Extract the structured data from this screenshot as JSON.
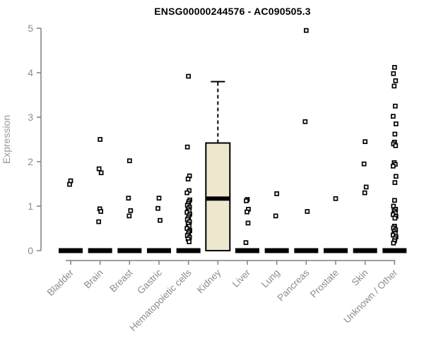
{
  "chart_data": {
    "type": "boxplot",
    "title": "ENSG00000244576 - AC090505.3",
    "ylabel": "Expression",
    "xlabel": "",
    "ylim": [
      0,
      5
    ],
    "yticks": [
      0,
      1,
      2,
      3,
      4,
      5
    ],
    "grid": false,
    "legend": "none",
    "categories": [
      "Bladder",
      "Brain",
      "Breast",
      "Gastric",
      "Hematopoietic cells",
      "Kidney",
      "Liver",
      "Lung",
      "Pancreas",
      "Prostate",
      "Skin",
      "Unknown / Other"
    ],
    "series": [
      {
        "category": "Bladder",
        "zero_bar": true,
        "points": [
          1.57,
          1.49
        ]
      },
      {
        "category": "Brain",
        "zero_bar": true,
        "points": [
          2.5,
          1.84,
          1.75,
          0.94,
          0.88,
          0.65
        ]
      },
      {
        "category": "Breast",
        "zero_bar": true,
        "points": [
          2.02,
          1.18,
          0.9,
          0.78
        ]
      },
      {
        "category": "Gastric",
        "zero_bar": true,
        "points": [
          1.18,
          0.95,
          0.68
        ]
      },
      {
        "category": "Hematopoietic cells",
        "zero_bar": true,
        "points": [
          3.92,
          2.33,
          1.68,
          1.61,
          1.35,
          1.3,
          1.14,
          1.1,
          1.06,
          1.02,
          0.98,
          0.94,
          0.9,
          0.86,
          0.82,
          0.78,
          0.74,
          0.7,
          0.65,
          0.6,
          0.55,
          0.5,
          0.45,
          0.42,
          0.38,
          0.34,
          0.3,
          0.26,
          0.2
        ]
      },
      {
        "category": "Kidney",
        "zero_bar": false,
        "points": [],
        "box": {
          "whisker_high": 3.8,
          "q3": 2.42,
          "median": 1.17,
          "q1": 0,
          "whisker_low": 0
        }
      },
      {
        "category": "Liver",
        "zero_bar": true,
        "points": [
          1.15,
          1.12,
          0.93,
          0.87,
          0.62,
          0.18
        ]
      },
      {
        "category": "Lung",
        "zero_bar": true,
        "points": [
          1.28,
          0.78
        ]
      },
      {
        "category": "Pancreas",
        "zero_bar": true,
        "points": [
          4.95,
          2.9,
          0.88
        ]
      },
      {
        "category": "Prostate",
        "zero_bar": true,
        "points": [
          1.17
        ]
      },
      {
        "category": "Skin",
        "zero_bar": true,
        "points": [
          2.45,
          1.95,
          1.43,
          1.3
        ]
      },
      {
        "category": "Unknown / Other",
        "zero_bar": true,
        "points": [
          4.12,
          3.98,
          3.82,
          3.7,
          3.25,
          3.02,
          2.85,
          2.62,
          2.44,
          2.4,
          2.36,
          1.98,
          1.94,
          1.9,
          1.67,
          1.53,
          1.13,
          1.0,
          0.93,
          0.89,
          0.85,
          0.81,
          0.77,
          0.73,
          0.55,
          0.51,
          0.47,
          0.43,
          0.39,
          0.35,
          0.31,
          0.27,
          0.22,
          0.17
        ]
      }
    ],
    "colors": {
      "box_fill": "#ECE7CD",
      "stroke": "#000000",
      "axis": "#7f7f7f",
      "tick_label": "#8c8c8c",
      "axis_label": "#999999",
      "title": "#000000",
      "point_fill": "#ffffff"
    }
  }
}
